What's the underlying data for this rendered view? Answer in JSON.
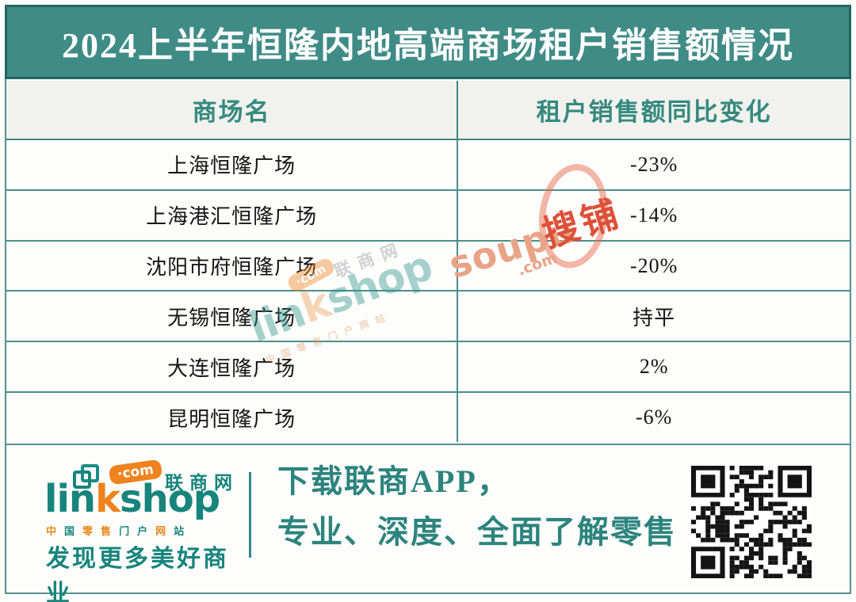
{
  "banner": {
    "title": "2024上半年恒隆内地高端商场租户销售额情况"
  },
  "table": {
    "columns": {
      "mall": "商场名",
      "change": "租户销售额同比变化"
    },
    "rows": [
      {
        "mall": "上海恒隆广场",
        "change": "-23%"
      },
      {
        "mall": "上海港汇恒隆广场",
        "change": "-14%"
      },
      {
        "mall": "沈阳市府恒隆广场",
        "change": "-20%"
      },
      {
        "mall": "无锡恒隆广场",
        "change": "持平"
      },
      {
        "mall": "大连恒隆广场",
        "change": "2%"
      },
      {
        "mall": "昆明恒隆广场",
        "change": "-6%"
      }
    ]
  },
  "chart_data": {
    "type": "table",
    "title": "2024上半年恒隆内地高端商场租户销售额情况",
    "columns": [
      "商场名",
      "租户销售额同比变化"
    ],
    "rows": [
      [
        "上海恒隆广场",
        "-23%"
      ],
      [
        "上海港汇恒隆广场",
        "-14%"
      ],
      [
        "沈阳市府恒隆广场",
        "-20%"
      ],
      [
        "无锡恒隆广场",
        "持平"
      ],
      [
        "大连恒隆广场",
        "2%"
      ],
      [
        "昆明恒隆广场",
        "-6%"
      ]
    ],
    "values_numeric_pct": [
      -23,
      -14,
      -20,
      0,
      2,
      -6
    ]
  },
  "footer": {
    "logo": {
      "word_lin": "lin",
      "word_k": "k",
      "word_shop": "shop",
      "com_badge": "·com",
      "site_name": "联商网",
      "tagline_chars": "中国零售门户网站",
      "tagline_colors": [
        "#e8891c",
        "#17857c",
        "#e8891c",
        "#e8891c",
        "#17857c",
        "#17857c",
        "#e8891c",
        "#17857c"
      ],
      "slogan": "发现更多美好商业"
    },
    "promo_line1": "下载联商APP，",
    "promo_line2": "专业、深度、全面了解零售"
  },
  "watermarks": {
    "linkshop": {
      "com_badge": "·com",
      "site_name": "联商网",
      "word_lin": "lin",
      "word_k": "k",
      "word_shop": "shop",
      "tagline": "中国零售门户网站"
    },
    "soupu": {
      "latin": "soupu",
      "dotcom": ".com",
      "cn": "搜铺"
    }
  },
  "colors": {
    "banner_bg": "#3f8b86",
    "banner_border": "#21665f",
    "table_border": "#4b8f8b",
    "header_text": "#35897f",
    "logo_teal": "#17857c",
    "logo_orange": "#ef831e",
    "promo_teal": "#2c847d",
    "soupu_red": "#dd5038"
  }
}
